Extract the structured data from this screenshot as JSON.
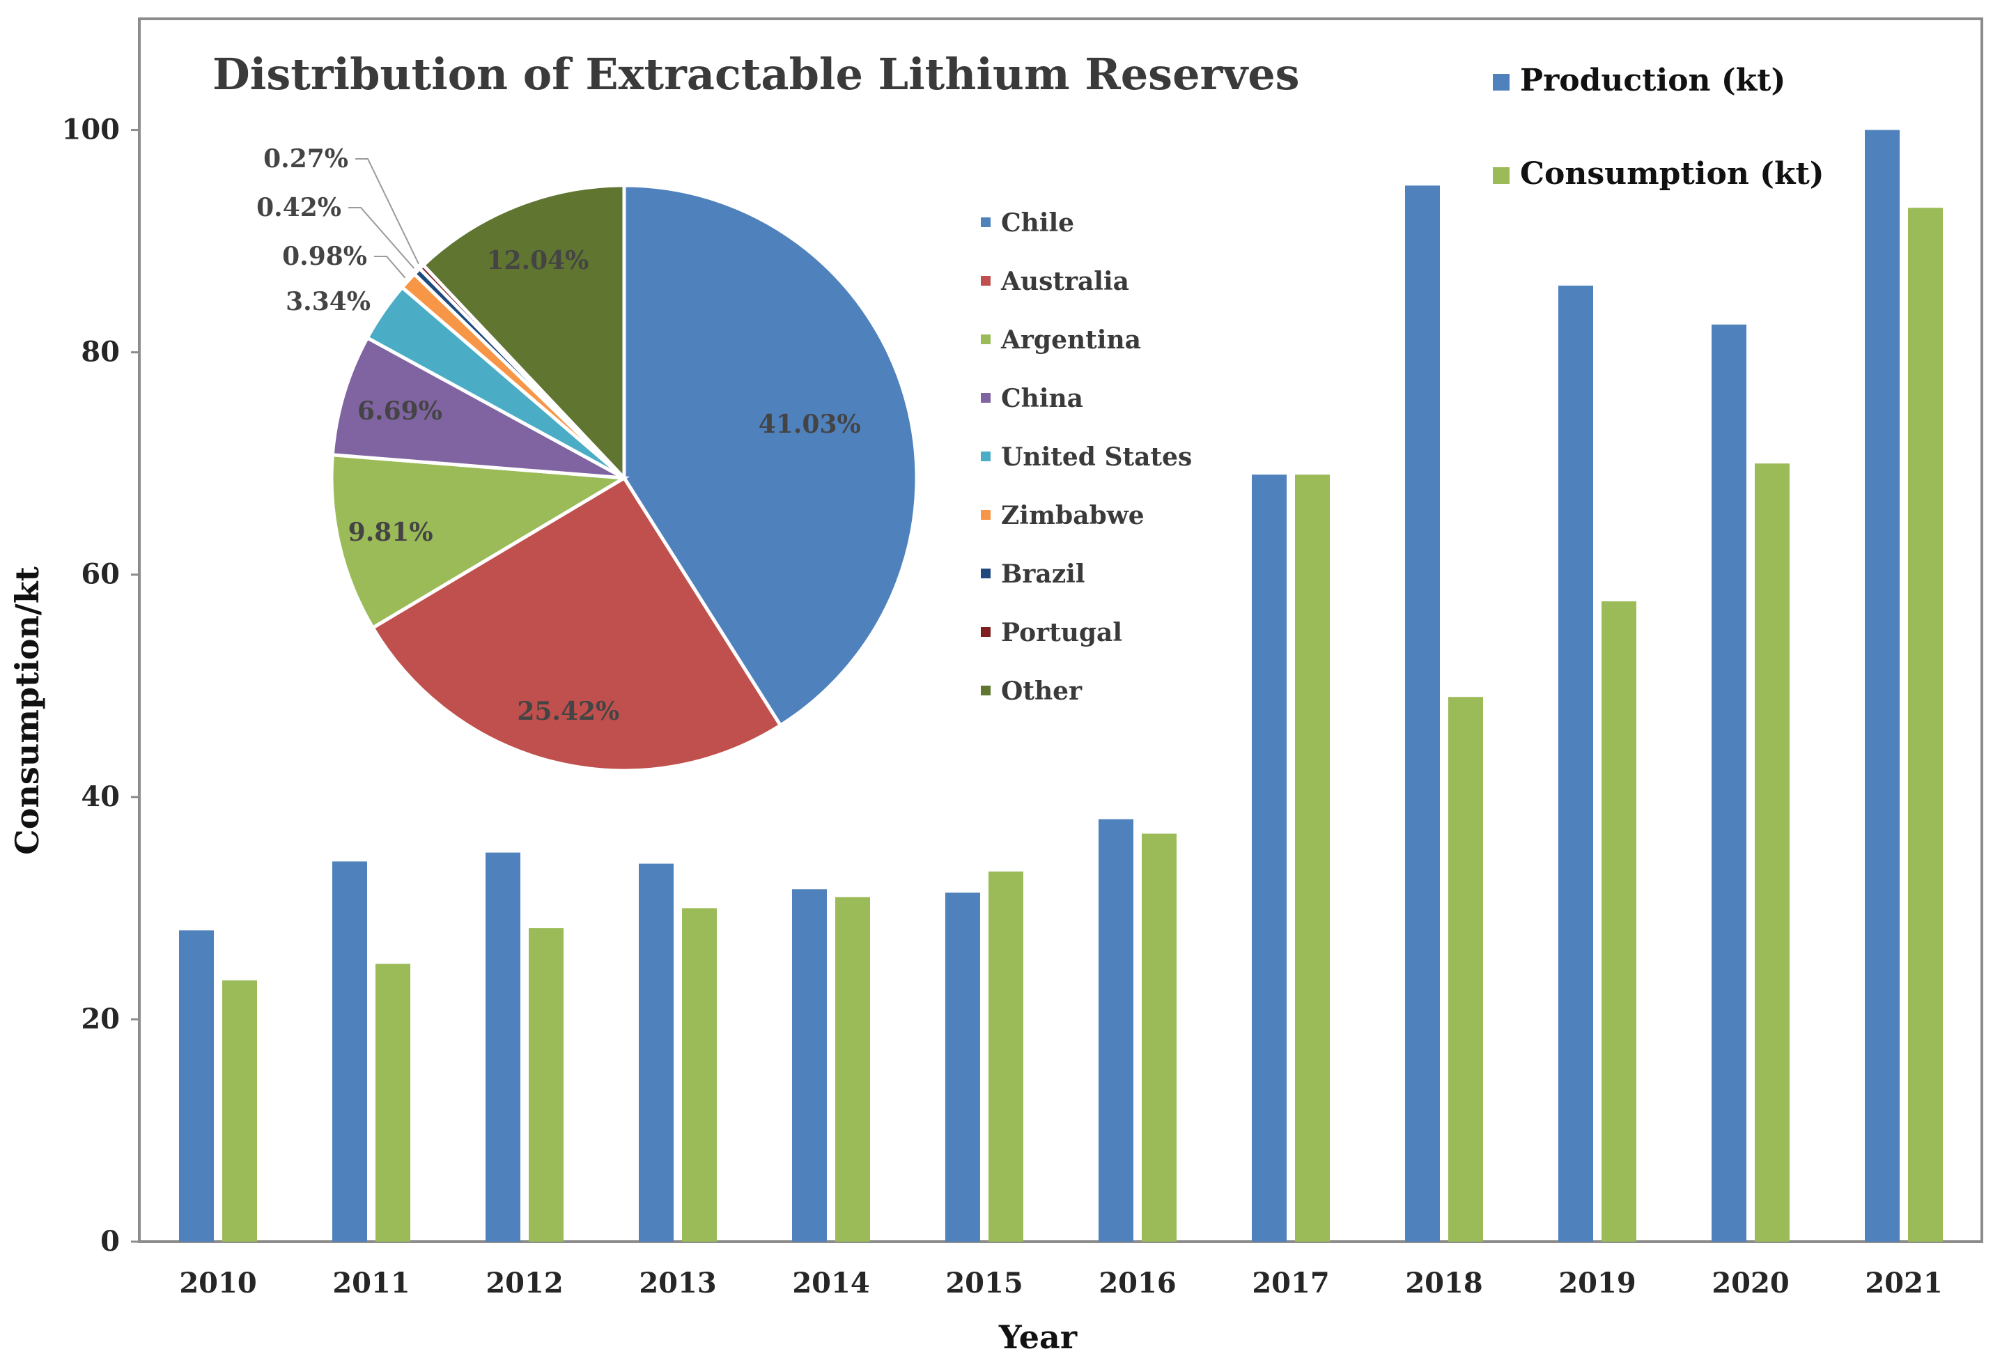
{
  "chart_data": [
    {
      "type": "bar",
      "categories": [
        "2010",
        "2011",
        "2012",
        "2013",
        "2014",
        "2015",
        "2016",
        "2017",
        "2018",
        "2019",
        "2020",
        "2021"
      ],
      "series": [
        {
          "name": "Production (kt)",
          "color": "#4f81bd",
          "values": [
            28,
            34.2,
            35,
            34,
            31.7,
            31.4,
            38,
            69,
            95,
            86,
            82.5,
            100
          ]
        },
        {
          "name": "Consumption (kt)",
          "color": "#9bbb59",
          "values": [
            23.5,
            25,
            28.2,
            30,
            31,
            33.3,
            36.7,
            69,
            49,
            57.6,
            70,
            93
          ]
        }
      ],
      "xlabel": "Year",
      "ylabel": "Consumption/kt",
      "ylim": [
        0,
        110
      ],
      "yticks": [
        "0",
        "20",
        "40",
        "60",
        "80",
        "100"
      ],
      "legend": "top-right"
    },
    {
      "type": "pie",
      "title": "Distribution of Extractable Lithium Reserves",
      "slices": [
        {
          "label": "Chile",
          "value": 41.03,
          "text": "41.03%",
          "color": "#4f81bd"
        },
        {
          "label": "Australia",
          "value": 25.42,
          "text": "25.42%",
          "color": "#c0504d"
        },
        {
          "label": "Argentina",
          "value": 9.81,
          "text": "9.81%",
          "color": "#9bbb59"
        },
        {
          "label": "China",
          "value": 6.69,
          "text": "6.69%",
          "color": "#8064a2"
        },
        {
          "label": "United States",
          "value": 3.34,
          "text": "3.34%",
          "color": "#4bacc6"
        },
        {
          "label": "Zimbabwe",
          "value": 0.98,
          "text": "0.98%",
          "color": "#f79646"
        },
        {
          "label": "Brazil",
          "value": 0.42,
          "text": "0.42%",
          "color": "#1f497d"
        },
        {
          "label": "Portugal",
          "value": 0.27,
          "text": "0.27%",
          "color": "#7f1f1f"
        },
        {
          "label": "Other",
          "value": 12.04,
          "text": "12.04%",
          "color": "#5f7530"
        }
      ]
    }
  ]
}
